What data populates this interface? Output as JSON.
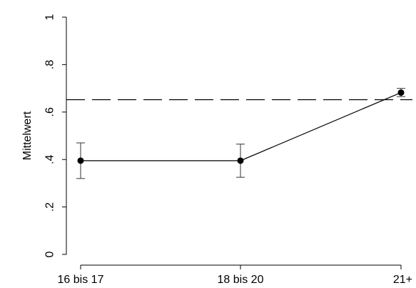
{
  "chart_data": {
    "type": "line",
    "categories": [
      "16 bis 17",
      "18 bis 20",
      "21+"
    ],
    "ylabel": "Mittelwert",
    "ylim": [
      0,
      1
    ],
    "yticks": [
      0,
      0.2,
      0.4,
      0.6,
      0.8,
      1
    ],
    "ytick_labels": [
      "0",
      ".2",
      ".4",
      ".6",
      ".8",
      "1"
    ],
    "series": [
      {
        "values": [
          0.395,
          0.395,
          0.682
        ],
        "lower": [
          0.32,
          0.325,
          0.665
        ],
        "upper": [
          0.47,
          0.465,
          0.7
        ]
      }
    ],
    "reference_line": {
      "y": 0.652,
      "style": "dashed"
    },
    "grid": false,
    "legend": "none"
  }
}
